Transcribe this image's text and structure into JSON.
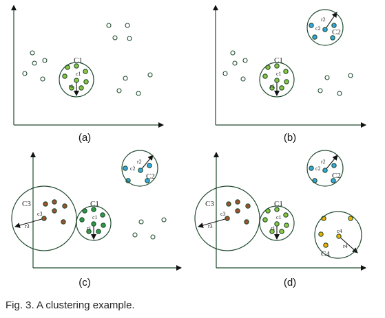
{
  "caption": "Fig. 3. A clustering example.",
  "colors": {
    "axis": "#1f4a2e",
    "circle": "#1f4a2e",
    "arrow": "#111111",
    "hollow": "#1f4a2e",
    "cluster1": "#8cc63f",
    "cluster1_dark": "#2e9a44",
    "cluster2": "#33a8dc",
    "cluster3": "#a0522d",
    "cluster4": "#f0b400"
  },
  "panels": [
    {
      "label": "(a)",
      "clusters": [
        {
          "name": "C1",
          "center_label": "c1",
          "radius_label": "r1",
          "color_key": "cluster1"
        }
      ]
    },
    {
      "label": "(b)",
      "clusters": [
        {
          "name": "C1",
          "center_label": "c1",
          "radius_label": "r1",
          "color_key": "cluster1"
        },
        {
          "name": "C2",
          "center_label": "c2",
          "radius_label": "r2",
          "color_key": "cluster2"
        }
      ]
    },
    {
      "label": "(c)",
      "clusters": [
        {
          "name": "C1",
          "center_label": "c1",
          "radius_label": "r1",
          "color_key": "cluster1_dark"
        },
        {
          "name": "C2",
          "center_label": "c2",
          "radius_label": "r2",
          "color_key": "cluster2"
        },
        {
          "name": "C3",
          "center_label": "c3",
          "radius_label": "r3",
          "color_key": "cluster3"
        }
      ]
    },
    {
      "label": "(d)",
      "clusters": [
        {
          "name": "C1",
          "center_label": "c1",
          "radius_label": "r1",
          "color_key": "cluster1"
        },
        {
          "name": "C2",
          "center_label": "c2",
          "radius_label": "r2",
          "color_key": "cluster2"
        },
        {
          "name": "C3",
          "center_label": "c3",
          "radius_label": "r3",
          "color_key": "cluster3"
        },
        {
          "name": "C4",
          "center_label": "c4",
          "radius_label": "r4",
          "color_key": "cluster4"
        }
      ]
    }
  ]
}
